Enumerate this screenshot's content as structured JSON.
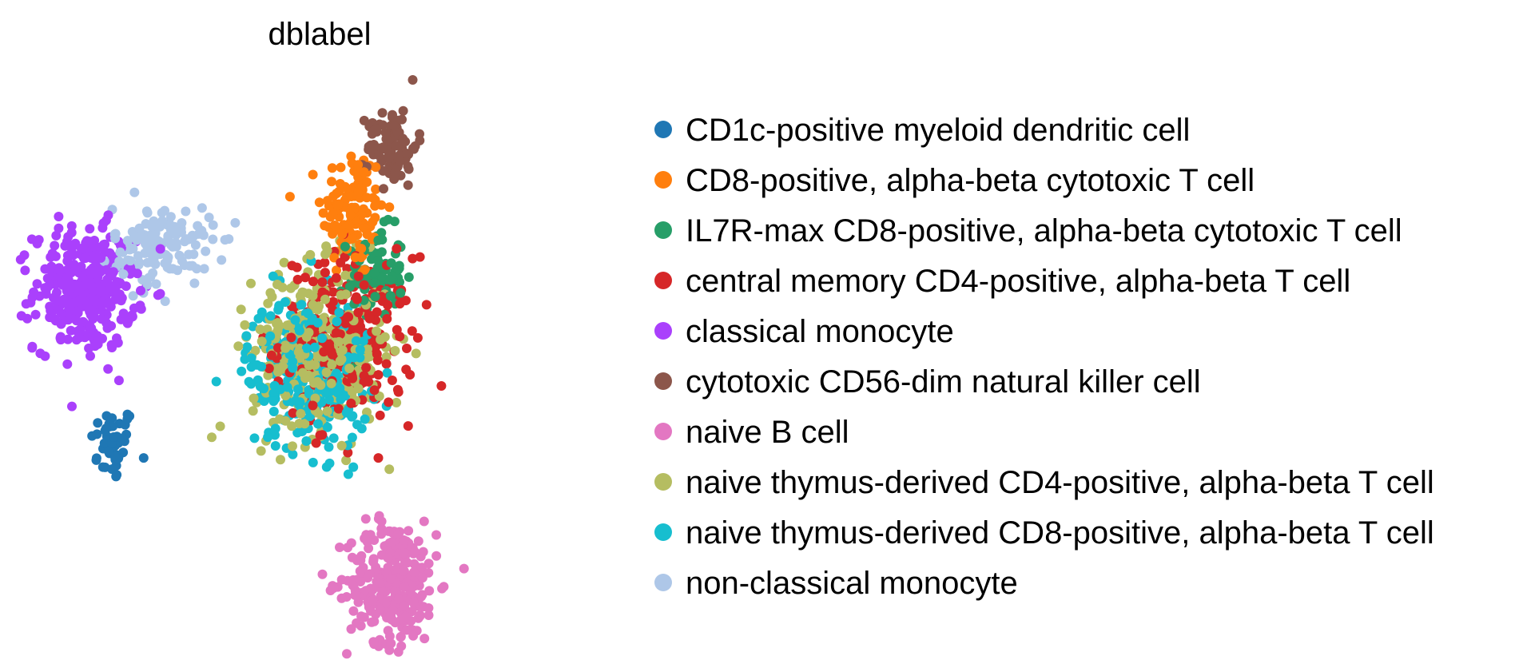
{
  "chart_data": {
    "type": "scatter",
    "title": "dblabel",
    "xlabel": "",
    "ylabel": "",
    "axes_visible": false,
    "grid": false,
    "legend_position": "right",
    "xlim": [
      0,
      10
    ],
    "ylim": [
      0,
      10
    ],
    "series": [
      {
        "name": "CD1c-positive myeloid dendritic cell",
        "color": "#1f77b4",
        "clusters": [
          {
            "cx": 1.3,
            "cy": 3.4,
            "sx": 0.2,
            "sy": 0.35,
            "n": 45
          }
        ]
      },
      {
        "name": "CD8-positive, alpha-beta cytotoxic T cell",
        "color": "#ff7f0e",
        "clusters": [
          {
            "cx": 5.6,
            "cy": 7.6,
            "sx": 0.28,
            "sy": 0.6,
            "n": 130
          }
        ]
      },
      {
        "name": "IL7R-max CD8-positive, alpha-beta cytotoxic T cell",
        "color": "#279e68",
        "clusters": [
          {
            "cx": 6.0,
            "cy": 6.5,
            "sx": 0.25,
            "sy": 0.4,
            "n": 90
          }
        ]
      },
      {
        "name": "central memory CD4-positive, alpha-beta T cell",
        "color": "#d62728",
        "clusters": [
          {
            "cx": 5.5,
            "cy": 5.3,
            "sx": 0.6,
            "sy": 0.75,
            "n": 260
          }
        ]
      },
      {
        "name": "classical monocyte",
        "color": "#aa40fc",
        "clusters": [
          {
            "cx": 0.8,
            "cy": 6.2,
            "sx": 0.45,
            "sy": 0.55,
            "n": 330
          }
        ]
      },
      {
        "name": "cytotoxic CD56-dim natural killer cell",
        "color": "#8c564b",
        "clusters": [
          {
            "cx": 6.3,
            "cy": 8.8,
            "sx": 0.22,
            "sy": 0.35,
            "n": 90
          }
        ]
      },
      {
        "name": "naive B cell",
        "color": "#e377c2",
        "clusters": [
          {
            "cx": 6.3,
            "cy": 0.9,
            "sx": 0.4,
            "sy": 0.55,
            "n": 300
          }
        ]
      },
      {
        "name": "naive thymus-derived CD4-positive, alpha-beta T cell",
        "color": "#b5bd61",
        "clusters": [
          {
            "cx": 5.0,
            "cy": 5.1,
            "sx": 0.6,
            "sy": 0.75,
            "n": 360
          }
        ]
      },
      {
        "name": "naive thymus-derived CD8-positive, alpha-beta T cell",
        "color": "#17becf",
        "clusters": [
          {
            "cx": 4.8,
            "cy": 4.7,
            "sx": 0.55,
            "sy": 0.7,
            "n": 280
          }
        ]
      },
      {
        "name": "non-classical monocyte",
        "color": "#aec7e8",
        "clusters": [
          {
            "cx": 2.2,
            "cy": 7.0,
            "sx": 0.45,
            "sy": 0.35,
            "n": 140
          }
        ]
      }
    ]
  }
}
